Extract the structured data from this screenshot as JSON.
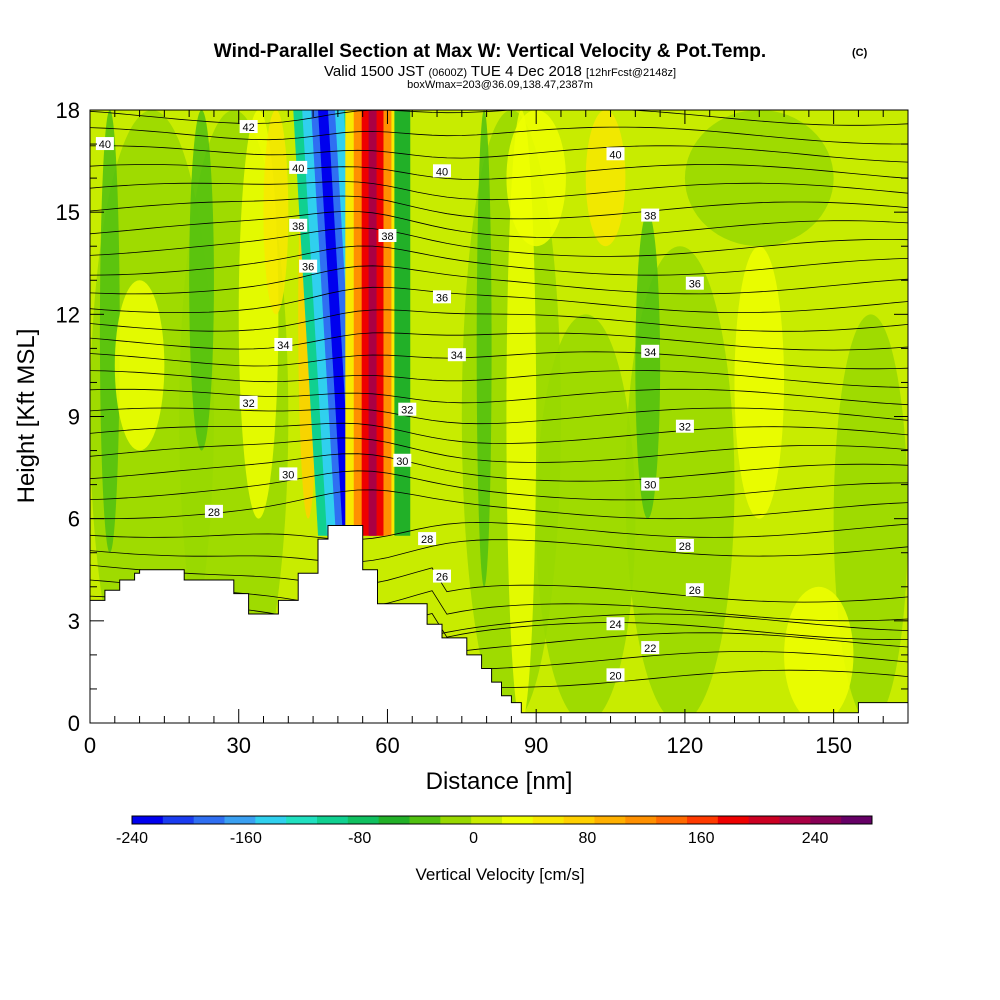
{
  "header": {
    "title_main": "Wind-Parallel Section at Max W: Vertical Velocity & Pot.Temp.",
    "title_mark": "(C)",
    "valid_prefix": "Valid 1500 JST",
    "valid_utc": "(0600Z)",
    "valid_date": "TUE 4 Dec 2018",
    "valid_fcst": "[12hrFcst@2148z]",
    "box_info": "boxWmax=203@36.09,138.47,2387m"
  },
  "colorbar": {
    "label": "Vertical Velocity [cm/s]",
    "min": -240,
    "max": 280,
    "tick_labels": [
      "-240",
      "-160",
      "-80",
      "0",
      "80",
      "160",
      "240"
    ],
    "tick_values": [
      -240,
      -160,
      -80,
      0,
      80,
      160,
      240
    ],
    "colors": [
      "#0000ee",
      "#1a3cf0",
      "#2f6ff2",
      "#3aa0f2",
      "#30d0ee",
      "#20e0c0",
      "#10d090",
      "#10c060",
      "#22b028",
      "#50c010",
      "#98d800",
      "#c8ec00",
      "#eeff00",
      "#f8e800",
      "#ffd000",
      "#ffb000",
      "#ff9000",
      "#ff6a00",
      "#ff3a00",
      "#ee0000",
      "#cc0022",
      "#aa0044",
      "#880055",
      "#660066"
    ]
  },
  "chart_data": {
    "type": "heatmap",
    "xlabel": "Distance [nm]",
    "ylabel": "Height [Kft MSL]",
    "xlim": [
      0,
      165
    ],
    "ylim": [
      0,
      18
    ],
    "x_ticks": [
      0,
      30,
      60,
      90,
      120,
      150
    ],
    "y_ticks": [
      0,
      3,
      6,
      9,
      12,
      15,
      18
    ],
    "x_tick_labels": [
      "0",
      "30",
      "60",
      "90",
      "120",
      "150"
    ],
    "y_tick_labels": [
      "0",
      "3",
      "6",
      "9",
      "12",
      "15",
      "18"
    ],
    "terrain": {
      "x": [
        0,
        3,
        3,
        6,
        6,
        9,
        9,
        10,
        10,
        19,
        19,
        29,
        29,
        32,
        32,
        38,
        38,
        42,
        42,
        46,
        46,
        48,
        48,
        55,
        55,
        58,
        58,
        68,
        68,
        71,
        71,
        76,
        76,
        79,
        79,
        81,
        81,
        83,
        83,
        85,
        85,
        87,
        87,
        155,
        155,
        165
      ],
      "y": [
        3.6,
        3.6,
        3.9,
        3.9,
        4.2,
        4.2,
        4.4,
        4.4,
        4.5,
        4.5,
        4.2,
        4.2,
        3.8,
        3.8,
        3.2,
        3.2,
        3.6,
        3.6,
        4.4,
        4.4,
        5.4,
        5.4,
        5.8,
        5.8,
        4.5,
        4.5,
        3.5,
        3.5,
        2.9,
        2.9,
        2.5,
        2.5,
        2.0,
        2.0,
        1.6,
        1.6,
        1.2,
        1.2,
        0.8,
        0.8,
        0.6,
        0.6,
        0.3,
        0.3,
        0.6,
        0.6
      ]
    },
    "updraft": {
      "x_bottom": 57,
      "x_top": 57,
      "peak_value": 203
    },
    "downdraft": {
      "x_bottom": 52,
      "x_top": 51,
      "peak_value": -240
    },
    "theta_contours": [
      {
        "label": "20",
        "at": [
          106,
          1.4
        ]
      },
      {
        "label": "22",
        "at": [
          113,
          2.2
        ]
      },
      {
        "label": "24",
        "at": [
          106,
          2.9
        ]
      },
      {
        "label": "26",
        "at": [
          71,
          4.3
        ]
      },
      {
        "label": "26",
        "at": [
          122,
          3.9
        ]
      },
      {
        "label": "28",
        "at": [
          25,
          6.2
        ]
      },
      {
        "label": "28",
        "at": [
          68,
          5.4
        ]
      },
      {
        "label": "28",
        "at": [
          120,
          5.2
        ]
      },
      {
        "label": "30",
        "at": [
          40,
          7.3
        ]
      },
      {
        "label": "30",
        "at": [
          63,
          7.7
        ]
      },
      {
        "label": "30",
        "at": [
          113,
          7.0
        ]
      },
      {
        "label": "32",
        "at": [
          32,
          9.4
        ]
      },
      {
        "label": "32",
        "at": [
          64,
          9.2
        ]
      },
      {
        "label": "32",
        "at": [
          120,
          8.7
        ]
      },
      {
        "label": "34",
        "at": [
          39,
          11.1
        ]
      },
      {
        "label": "34",
        "at": [
          74,
          10.8
        ]
      },
      {
        "label": "34",
        "at": [
          113,
          10.9
        ]
      },
      {
        "label": "36",
        "at": [
          44,
          13.4
        ]
      },
      {
        "label": "36",
        "at": [
          71,
          12.5
        ]
      },
      {
        "label": "36",
        "at": [
          122,
          12.9
        ]
      },
      {
        "label": "38",
        "at": [
          42,
          14.6
        ]
      },
      {
        "label": "38",
        "at": [
          60,
          14.3
        ]
      },
      {
        "label": "38",
        "at": [
          113,
          14.9
        ]
      },
      {
        "label": "40",
        "at": [
          3,
          17.0
        ]
      },
      {
        "label": "40",
        "at": [
          42,
          16.3
        ]
      },
      {
        "label": "40",
        "at": [
          71,
          16.2
        ]
      },
      {
        "label": "40",
        "at": [
          106,
          16.7
        ]
      },
      {
        "label": "42",
        "at": [
          32,
          17.5
        ]
      }
    ]
  }
}
